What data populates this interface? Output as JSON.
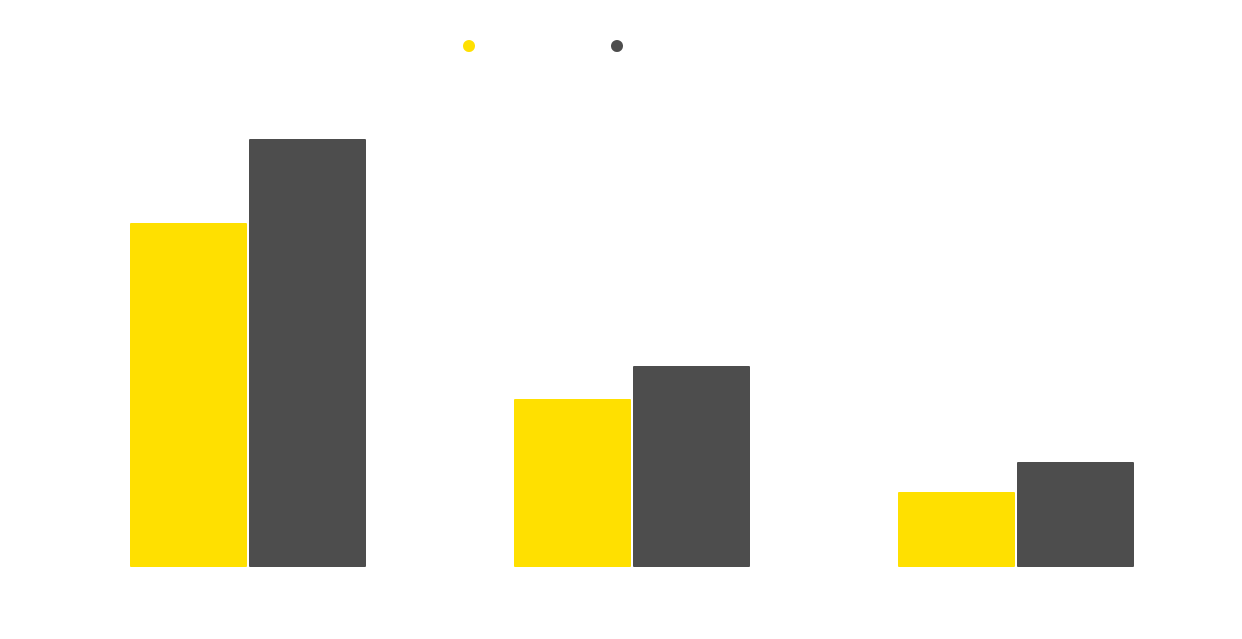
{
  "chart_data": {
    "type": "bar",
    "categories": [
      null,
      null,
      null
    ],
    "series": [
      {
        "color": "#ffe000",
        "values": [
          344,
          168,
          75
        ]
      },
      {
        "color": "#4d4d4d",
        "values": [
          428,
          201,
          105
        ]
      }
    ]
  }
}
